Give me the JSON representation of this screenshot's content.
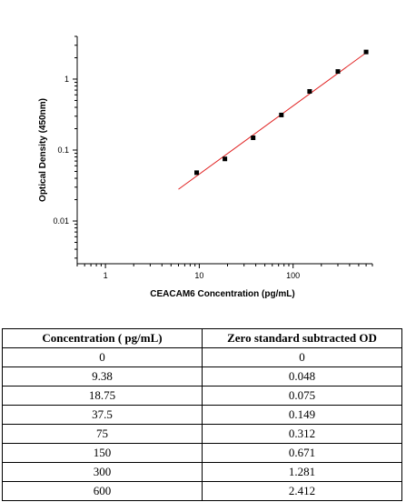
{
  "chart_data": {
    "type": "scatter",
    "xscale": "log",
    "yscale": "log",
    "xlabel": "CEACAM6 Concentration (pg/mL)",
    "ylabel": "Optical Density (450nm)",
    "xlim": [
      0.5,
      700
    ],
    "ylim": [
      0.0025,
      4
    ],
    "xticks": [
      1,
      10,
      100
    ],
    "xtick_labels": [
      "1",
      "10",
      "100"
    ],
    "yticks": [
      0.01,
      0.1,
      1
    ],
    "ytick_labels": [
      "0.01",
      "0.1",
      "1"
    ],
    "grid": false,
    "points": {
      "x": [
        9.38,
        18.75,
        37.5,
        75,
        150,
        300,
        600
      ],
      "y": [
        0.048,
        0.075,
        0.149,
        0.312,
        0.671,
        1.281,
        2.412
      ]
    },
    "fit_line": {
      "x": [
        6,
        600
      ],
      "y": [
        0.028,
        2.35
      ],
      "color": "#e02020"
    },
    "marker_color": "#000000"
  },
  "table": {
    "headers": [
      "Concentration ( pg/mL)",
      "Zero standard subtracted OD"
    ],
    "rows": [
      [
        "0",
        "0"
      ],
      [
        "9.38",
        "0.048"
      ],
      [
        "18.75",
        "0.075"
      ],
      [
        "37.5",
        "0.149"
      ],
      [
        "75",
        "0.312"
      ],
      [
        "150",
        "0.671"
      ],
      [
        "300",
        "1.281"
      ],
      [
        "600",
        "2.412"
      ]
    ]
  }
}
